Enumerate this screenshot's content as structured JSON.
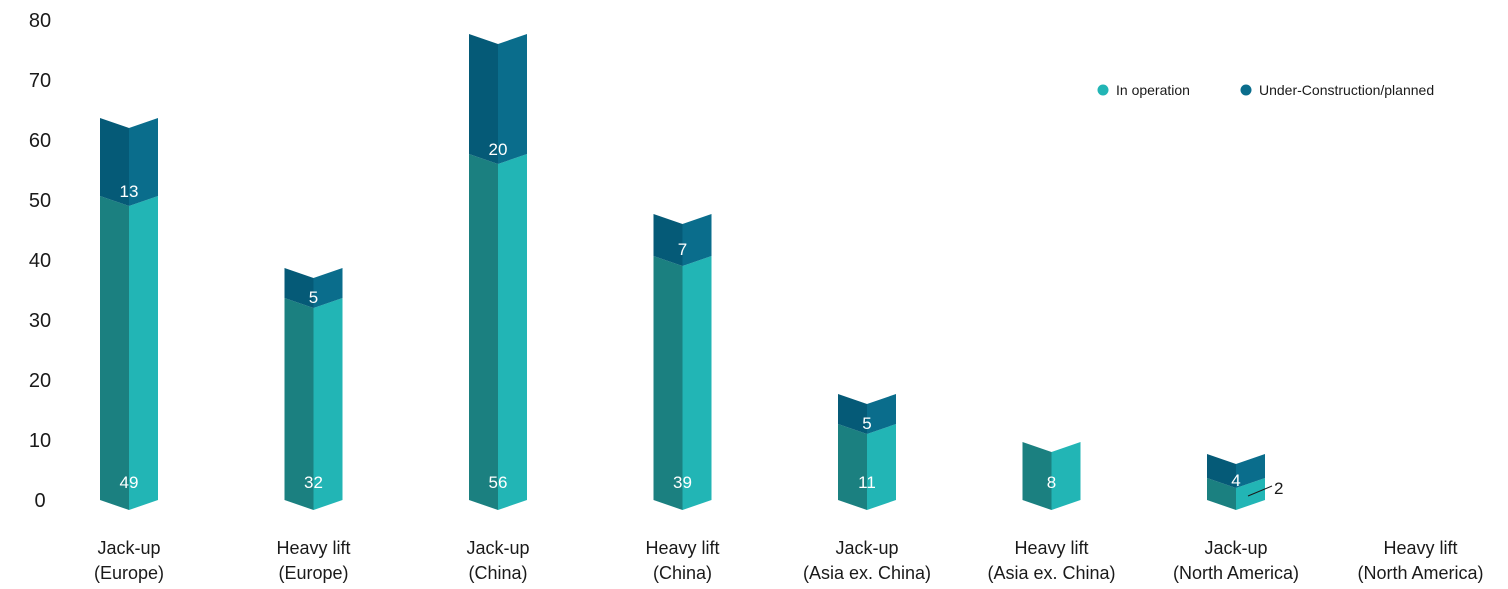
{
  "chart_data": {
    "type": "bar",
    "stacked": true,
    "categories": [
      [
        "Jack-up",
        "(Europe)"
      ],
      [
        "Heavy lift",
        "(Europe)"
      ],
      [
        "Jack-up",
        "(China)"
      ],
      [
        "Heavy lift",
        "(China)"
      ],
      [
        "Jack-up",
        "(Asia ex. China)"
      ],
      [
        "Heavy lift",
        "(Asia ex. China)"
      ],
      [
        "Jack-up",
        "(North America)"
      ],
      [
        "Heavy lift",
        "(North America)"
      ]
    ],
    "series": [
      {
        "name": "In operation",
        "values": [
          49,
          32,
          56,
          39,
          11,
          8,
          2,
          0
        ],
        "color": "#22b5b5",
        "shade": "#1b8080"
      },
      {
        "name": "Under-Construction/planned",
        "values": [
          13,
          5,
          20,
          7,
          5,
          0,
          4,
          0
        ],
        "color": "#0a6d8c",
        "shade": "#055a77"
      }
    ],
    "ylim": [
      0,
      80
    ],
    "yticks": [
      0,
      10,
      20,
      30,
      40,
      50,
      60,
      70,
      80
    ],
    "legend_position": "top-right",
    "grid": false
  }
}
